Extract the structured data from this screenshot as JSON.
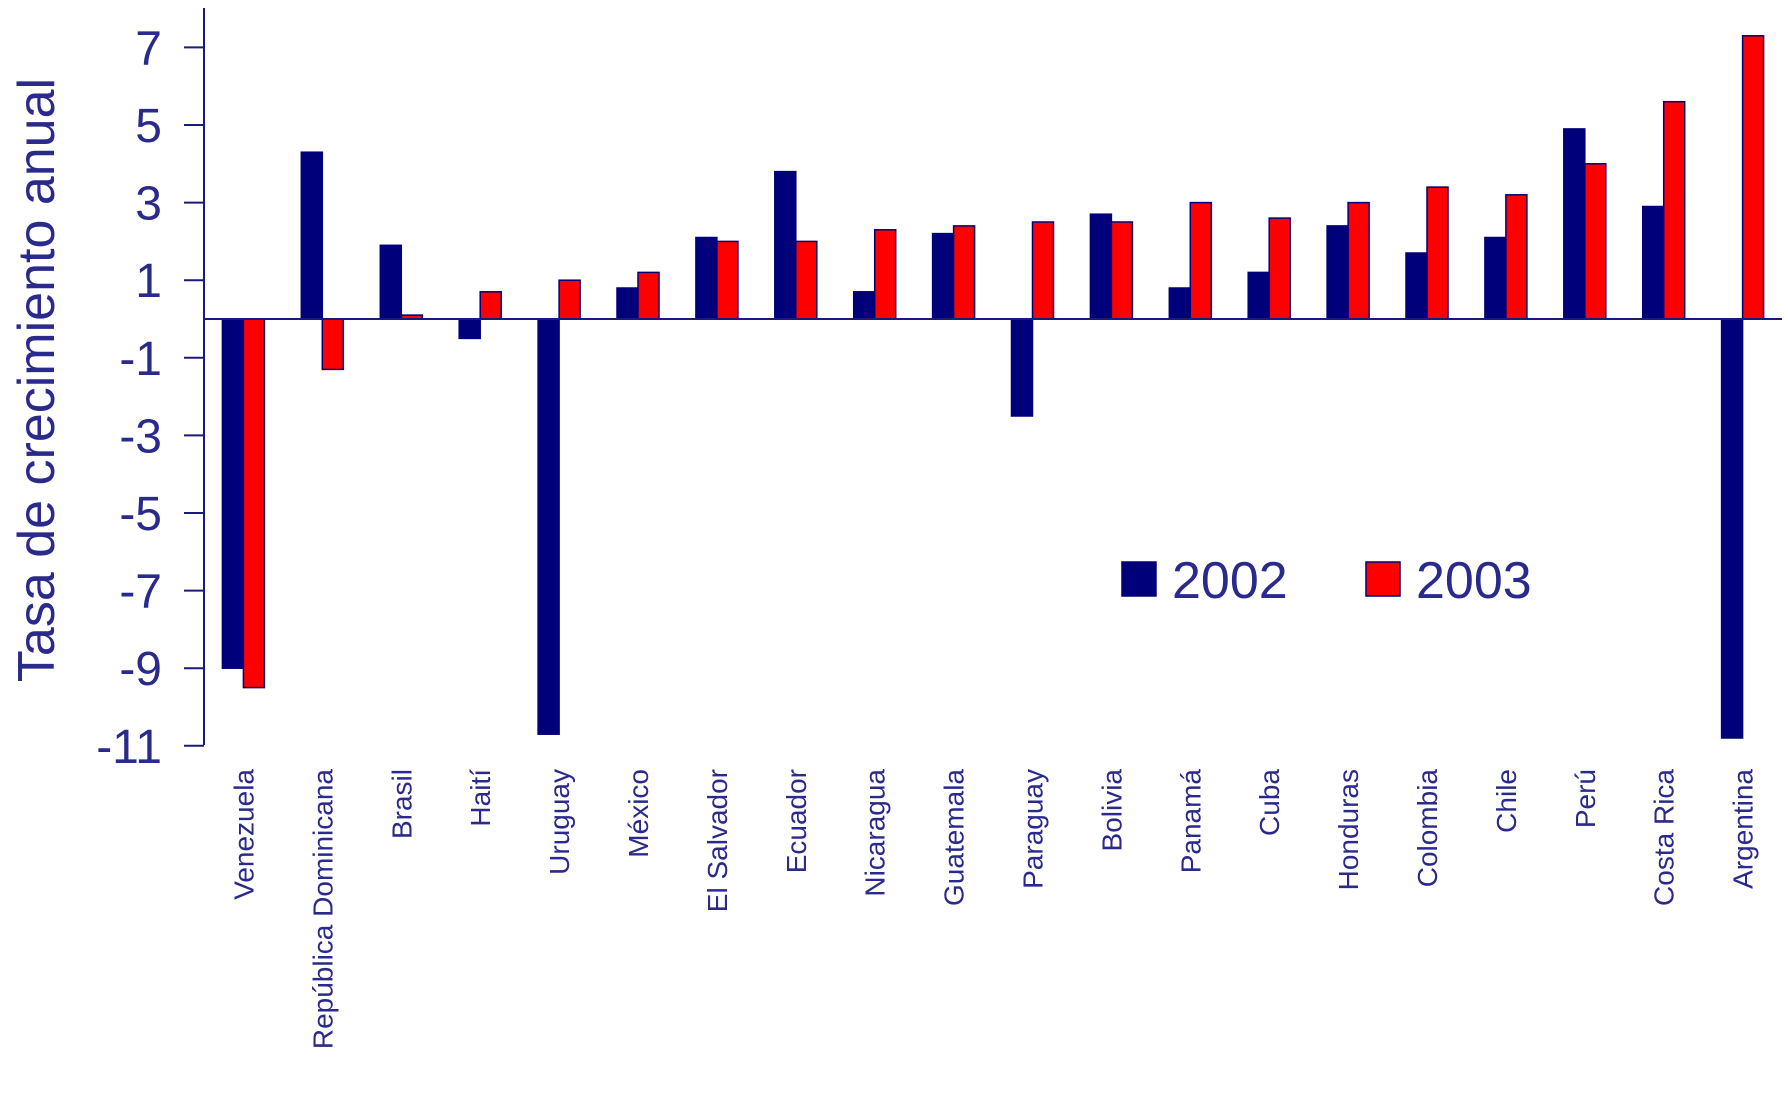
{
  "colors": {
    "text": "#2a2a8c",
    "axis": "#1a1a7a",
    "series_2002": "#00007a",
    "series_2003": "#ff0000",
    "bar_outline": "#00007a"
  },
  "chart_data": {
    "type": "bar",
    "title": "",
    "xlabel": "",
    "ylabel": "Tasa de crecimiento anual",
    "ylim": [
      -11,
      8
    ],
    "yticks": [
      7,
      5,
      3,
      1,
      -1,
      -3,
      -5,
      -7,
      -9,
      -11
    ],
    "grid": false,
    "legend_placement": "center-right",
    "categories": [
      "Venezuela",
      "República Dominicana",
      "Brasil",
      "Haití",
      "Uruguay",
      "México",
      "El Salvador",
      "Ecuador",
      "Nicaragua",
      "Guatemala",
      "Paraguay",
      "Bolivia",
      "Panamá",
      "Cuba",
      "Honduras",
      "Colombia",
      "Chile",
      "Perú",
      "Costa Rica",
      "Argentina"
    ],
    "series": [
      {
        "name": "2002",
        "values": [
          -9.0,
          4.3,
          1.9,
          -0.5,
          -10.7,
          0.8,
          2.1,
          3.8,
          0.7,
          2.2,
          -2.5,
          2.7,
          0.8,
          1.2,
          2.4,
          1.7,
          2.1,
          4.9,
          2.9,
          -10.8
        ]
      },
      {
        "name": "2003",
        "values": [
          -9.5,
          -1.3,
          0.1,
          0.7,
          1.0,
          1.2,
          2.0,
          2.0,
          2.3,
          2.4,
          2.5,
          2.5,
          3.0,
          2.6,
          3.0,
          3.4,
          3.2,
          4.0,
          5.6,
          7.3
        ]
      }
    ]
  }
}
